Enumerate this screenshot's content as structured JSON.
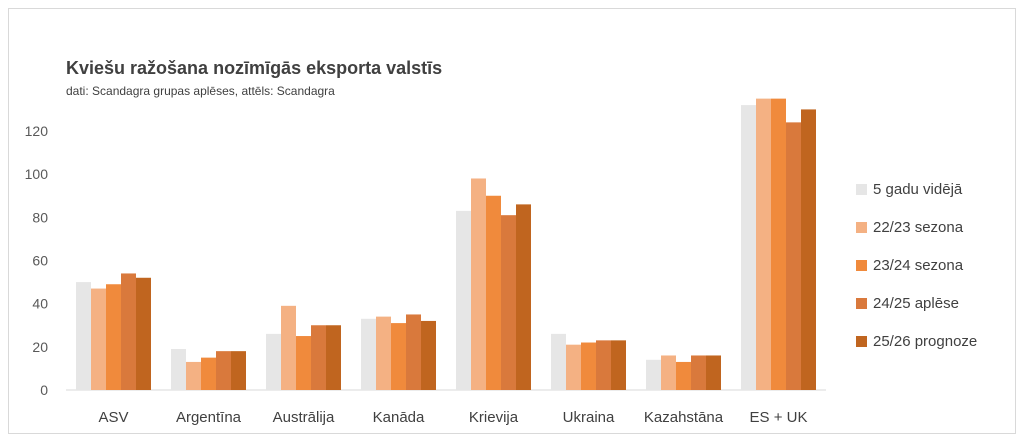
{
  "chart_data": {
    "type": "bar",
    "title": "Kviešu ražošana nozīmīgās eksporta valstīs",
    "subtitle": "dati: Scandagra grupas aplēses, attēls: Scandagra",
    "categories": [
      "ASV",
      "Argentīna",
      "Austrālija",
      "Kanāda",
      "Krievija",
      "Ukraina",
      "Kazahstāna",
      "ES + UK"
    ],
    "ylim": [
      0,
      130
    ],
    "yticks": [
      0,
      20,
      40,
      60,
      80,
      100,
      120
    ],
    "grid": false,
    "legend_position": "right",
    "series": [
      {
        "name": "5 gadu vidējā",
        "color": "#e6e6e6",
        "values": [
          50,
          19,
          26,
          33,
          83,
          26,
          14,
          132
        ]
      },
      {
        "name": "22/23 sezona",
        "color": "#f4b183",
        "values": [
          47,
          13,
          39,
          34,
          98,
          21,
          16,
          135
        ]
      },
      {
        "name": "23/24 sezona",
        "color": "#f08a3c",
        "values": [
          49,
          15,
          25,
          31,
          90,
          22,
          13,
          135
        ]
      },
      {
        "name": "24/25 aplēse",
        "color": "#d9793c",
        "values": [
          54,
          18,
          30,
          35,
          81,
          23,
          16,
          124
        ]
      },
      {
        "name": "25/26 prognoze",
        "color": "#c0651f",
        "values": [
          52,
          18,
          30,
          32,
          86,
          23,
          16,
          130
        ]
      }
    ]
  }
}
